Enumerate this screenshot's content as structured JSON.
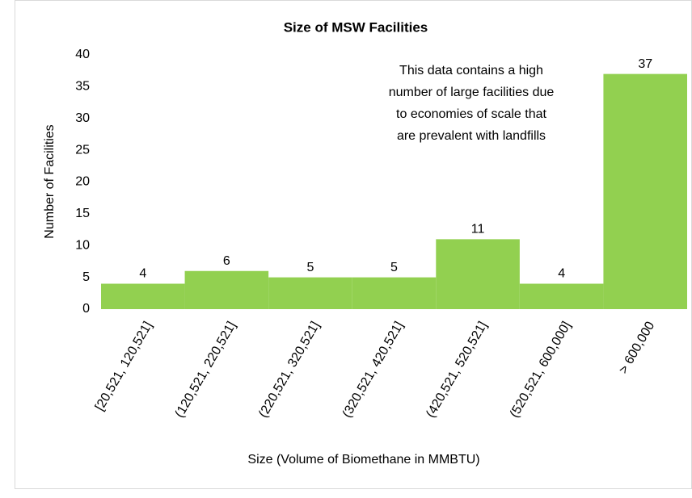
{
  "chart_data": {
    "type": "bar",
    "title": "Size of MSW Facilities",
    "x_label": "Size (Volume of Biomethane in MMBTU)",
    "y_label": "Number of Facilities",
    "annotation": [
      "This data contains a high",
      "number of large facilities due",
      "to economies of scale that",
      "are prevalent with landfills"
    ],
    "categories": [
      "[20,521, 120,521]",
      "(120,521, 220,521]",
      "(220,521, 320,521]",
      "(320,521, 420,521]",
      "(420,521, 520,521]",
      "(520,521, 600,000]",
      "> 600,000"
    ],
    "values": [
      4,
      6,
      5,
      5,
      11,
      4,
      37
    ],
    "color": "#92d050",
    "ylim": [
      0,
      40
    ],
    "yticks": [
      0,
      5,
      10,
      15,
      20,
      25,
      30,
      35,
      40
    ],
    "grid": false
  }
}
